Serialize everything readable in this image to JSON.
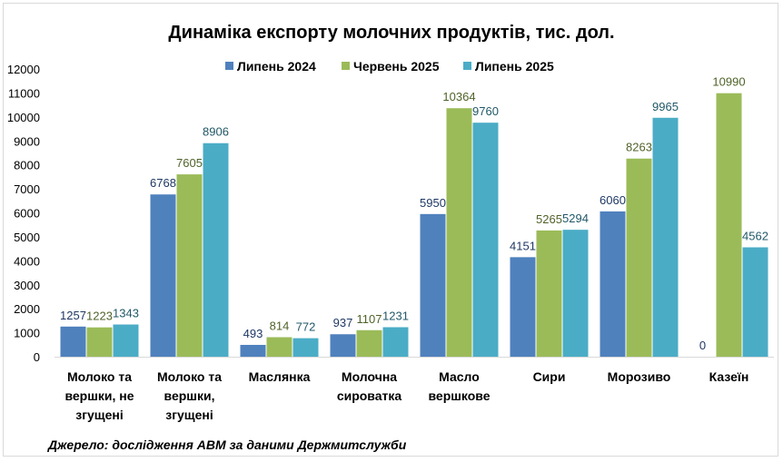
{
  "chart_data": {
    "type": "bar",
    "title": "Динаміка експорту молочних продуктів, тис. дол.",
    "categories": [
      [
        "Молоко та",
        "вершки, не",
        "згущені"
      ],
      [
        "Молоко та",
        "вершки,",
        "згущені"
      ],
      [
        "Маслянка"
      ],
      [
        "Молочна",
        "сироватка"
      ],
      [
        "Масло",
        "вершкове"
      ],
      [
        "Сири"
      ],
      [
        "Морозиво"
      ],
      [
        "Казеїн"
      ]
    ],
    "series": [
      {
        "name": "Липень 2024",
        "color": "#4f81bd",
        "label_color": "#1f3864",
        "values": [
          1257,
          6768,
          493,
          937,
          5950,
          4151,
          6060,
          0
        ]
      },
      {
        "name": "Червень 2025",
        "color": "#9bbb59",
        "label_color": "#4f6228",
        "values": [
          1223,
          7605,
          814,
          1107,
          10364,
          5265,
          8263,
          10990
        ]
      },
      {
        "name": "Липень 2025",
        "color": "#4bacc6",
        "label_color": "#215868",
        "values": [
          1343,
          8906,
          772,
          1231,
          9760,
          5294,
          9965,
          4562
        ]
      }
    ],
    "ylim": [
      0,
      12000
    ],
    "yticks": [
      0,
      1000,
      2000,
      3000,
      4000,
      5000,
      6000,
      7000,
      8000,
      9000,
      10000,
      11000,
      12000
    ],
    "legend_position": "top",
    "grid": false
  },
  "source_note": "Джерело: дослідження АВМ за даними Держмитслужби"
}
